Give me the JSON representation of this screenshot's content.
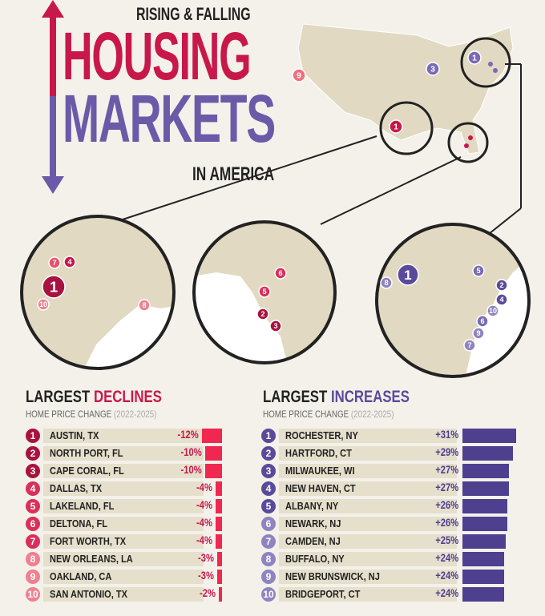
{
  "title": {
    "top": "RISING & FALLING",
    "main1": "HOUSING",
    "main2": "MARKETS",
    "bottom": "IN AMERICA"
  },
  "colors": {
    "decline": "#c8184a",
    "decline_bar": "#f0284f",
    "increase": "#6a5aa8",
    "increase_bar": "#4e3f8f",
    "map": "#e1d9c1",
    "background": "#f3f1ea"
  },
  "map_labels": {
    "south_tx": [
      "1",
      "7",
      "4",
      "10",
      "8"
    ],
    "florida": [
      "6",
      "5",
      "2",
      "3"
    ],
    "northeast": [
      "1",
      "8",
      "5",
      "2",
      "4",
      "10",
      "6",
      "9",
      "7"
    ],
    "us": [
      "9",
      "3",
      "1",
      "1"
    ]
  },
  "chart_data": [
    {
      "type": "bar",
      "title": "LARGEST DECLINES",
      "title_a": "LARGEST ",
      "title_b": "DECLINES",
      "subtitle": "HOME PRICE CHANGE",
      "subtitle_years": "(2022-2025)",
      "unit": "%",
      "categories": [
        "AUSTIN, TX",
        "NORTH PORT, FL",
        "CAPE CORAL, FL",
        "DALLAS, TX",
        "LAKELAND, FL",
        "DELTONA, FL",
        "FORT WORTH, TX",
        "NEW ORLEANS, LA",
        "OAKLAND, CA",
        "SAN ANTONIO, TX"
      ],
      "values": [
        -12,
        -10,
        -10,
        -4,
        -4,
        -4,
        -4,
        -3,
        -3,
        -2
      ],
      "labels": [
        "-12%",
        "-10%",
        "-10%",
        "-4%",
        "-4%",
        "-4%",
        "-4%",
        "-3%",
        "-3%",
        "-2%"
      ]
    },
    {
      "type": "bar",
      "title": "LARGEST INCREASES",
      "title_a": "LARGEST ",
      "title_b": "INCREASES",
      "subtitle": "HOME PRICE CHANGE",
      "subtitle_years": "(2022-2025)",
      "unit": "%",
      "categories": [
        "ROCHESTER, NY",
        "HARTFORD, CT",
        "MILWAUKEE, WI",
        "NEW HAVEN, CT",
        "ALBANY, NY",
        "NEWARK, NJ",
        "CAMDEN, NJ",
        "BUFFALO, NY",
        "NEW BRUNSWICK, NJ",
        "BRIDGEPORT, CT"
      ],
      "values": [
        31,
        29,
        27,
        27,
        26,
        26,
        25,
        24,
        24,
        24
      ],
      "labels": [
        "+31%",
        "+29%",
        "+27%",
        "+27%",
        "+26%",
        "+26%",
        "+25%",
        "+24%",
        "+24%",
        "+24%"
      ]
    }
  ]
}
